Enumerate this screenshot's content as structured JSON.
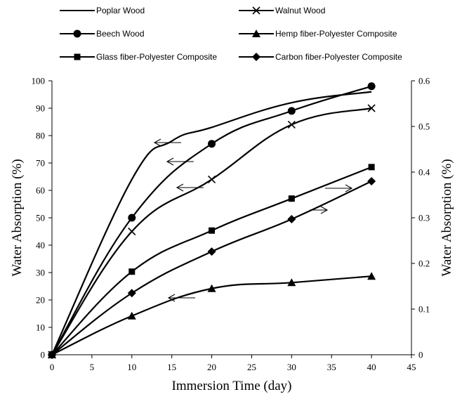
{
  "chart_data": {
    "type": "line",
    "title": "",
    "xlabel": "Immersion Time (day)",
    "ylabel": "Water Absorption (%)",
    "y2label": "Water Absorption (%)",
    "xlim": [
      0,
      45
    ],
    "ylim": [
      0,
      100
    ],
    "y2lim": [
      0,
      0.6
    ],
    "x_ticks": [
      "0",
      "5",
      "10",
      "15",
      "20",
      "25",
      "30",
      "35",
      "40",
      "45"
    ],
    "y_ticks": [
      "0",
      "10",
      "20",
      "30",
      "40",
      "50",
      "60",
      "70",
      "80",
      "90",
      "100"
    ],
    "y2_ticks": [
      "0",
      "0.1",
      "0.2",
      "0.3",
      "0.4",
      "0.5",
      "0.6"
    ],
    "grid": false,
    "legend_position": "top",
    "series": [
      {
        "name": "Poplar Wood",
        "axis": "left",
        "marker": "none",
        "x": [
          0,
          10,
          15,
          20,
          30,
          40
        ],
        "y": [
          0,
          64,
          78,
          83,
          92,
          96
        ]
      },
      {
        "name": "Walnut Wood",
        "axis": "left",
        "marker": "x",
        "x": [
          0,
          10,
          20,
          30,
          40
        ],
        "y": [
          0,
          45,
          64,
          84,
          90
        ]
      },
      {
        "name": "Beech Wood",
        "axis": "left",
        "marker": "circle",
        "x": [
          0,
          10,
          20,
          30,
          40
        ],
        "y": [
          0,
          50,
          77,
          89,
          98
        ]
      },
      {
        "name": "Hemp fiber-Polyester Composite",
        "axis": "right",
        "marker": "triangle",
        "x": [
          0,
          10,
          20,
          30,
          40
        ],
        "y": [
          0,
          0.085,
          0.145,
          0.158,
          0.172
        ]
      },
      {
        "name": "Glass fiber-Polyester Composite",
        "axis": "right",
        "marker": "square",
        "x": [
          0,
          10,
          20,
          30,
          40
        ],
        "y": [
          0,
          0.182,
          0.272,
          0.342,
          0.411
        ]
      },
      {
        "name": "Carbon fiber-Polyester Composite",
        "axis": "right",
        "marker": "diamond",
        "x": [
          0,
          10,
          20,
          30,
          40
        ],
        "y": [
          0,
          0.135,
          0.226,
          0.297,
          0.38
        ]
      }
    ],
    "annotations": [
      {
        "type": "arrow",
        "direction": "left",
        "series": "Poplar Wood"
      },
      {
        "type": "arrow",
        "direction": "left",
        "series": "Beech Wood"
      },
      {
        "type": "arrow",
        "direction": "left",
        "series": "Walnut Wood"
      },
      {
        "type": "arrow",
        "direction": "right",
        "series": "Glass fiber-Polyester Composite"
      },
      {
        "type": "arrow",
        "direction": "right",
        "series": "Carbon fiber-Polyester Composite"
      },
      {
        "type": "arrow",
        "direction": "left",
        "series": "Hemp fiber-Polyester Composite"
      }
    ],
    "line_color": "#000000"
  }
}
